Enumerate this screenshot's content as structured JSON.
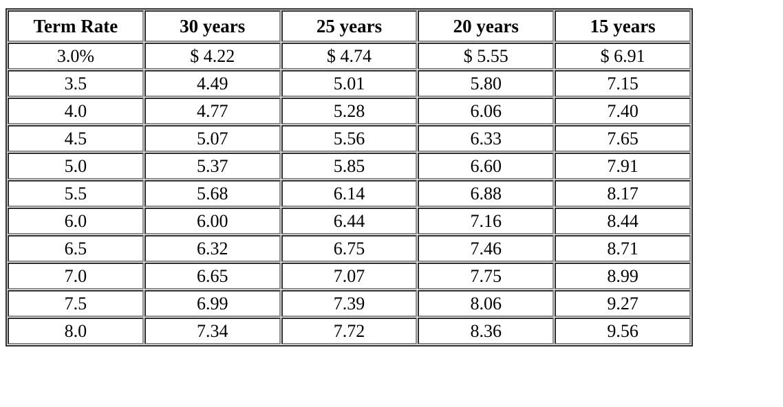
{
  "chart_data": {
    "type": "table",
    "title": "",
    "columns": [
      "Term Rate",
      "30 years",
      "25 years",
      "20 years",
      "15 years"
    ],
    "rows": [
      [
        "3.0%",
        "$ 4.22",
        "$ 4.74",
        "$ 5.55",
        "$ 6.91"
      ],
      [
        "3.5",
        "4.49",
        "5.01",
        "5.80",
        "7.15"
      ],
      [
        "4.0",
        "4.77",
        "5.28",
        "6.06",
        "7.40"
      ],
      [
        "4.5",
        "5.07",
        "5.56",
        "6.33",
        "7.65"
      ],
      [
        "5.0",
        "5.37",
        "5.85",
        "6.60",
        "7.91"
      ],
      [
        "5.5",
        "5.68",
        "6.14",
        "6.88",
        "8.17"
      ],
      [
        "6.0",
        "6.00",
        "6.44",
        "7.16",
        "8.44"
      ],
      [
        "6.5",
        "6.32",
        "6.75",
        "7.46",
        "8.71"
      ],
      [
        "7.0",
        "6.65",
        "7.07",
        "7.75",
        "8.99"
      ],
      [
        "7.5",
        "6.99",
        "7.39",
        "8.06",
        "9.27"
      ],
      [
        "8.0",
        "7.34",
        "7.72",
        "8.36",
        "9.56"
      ]
    ],
    "numeric": {
      "rates_percent": [
        3.0,
        3.5,
        4.0,
        4.5,
        5.0,
        5.5,
        6.0,
        6.5,
        7.0,
        7.5,
        8.0
      ],
      "series": [
        {
          "name": "30 years",
          "values": [
            4.22,
            4.49,
            4.77,
            5.07,
            5.37,
            5.68,
            6.0,
            6.32,
            6.65,
            6.99,
            7.34
          ]
        },
        {
          "name": "25 years",
          "values": [
            4.74,
            5.01,
            5.28,
            5.56,
            5.85,
            6.14,
            6.44,
            6.75,
            7.07,
            7.39,
            7.72
          ]
        },
        {
          "name": "20 years",
          "values": [
            5.55,
            5.8,
            6.06,
            6.33,
            6.6,
            6.88,
            7.16,
            7.46,
            7.75,
            8.06,
            8.36
          ]
        },
        {
          "name": "15 years",
          "values": [
            6.91,
            7.15,
            7.4,
            7.65,
            7.91,
            8.17,
            8.44,
            8.71,
            8.99,
            9.27,
            9.56
          ]
        }
      ]
    },
    "layout_hints": {
      "grid": "all-borders-3d",
      "border_dark_color": "#2d2d2d",
      "border_light_color": "#8a8a8a",
      "text_color": "#000000",
      "background_color": "#ffffff",
      "cell_alignment": "center"
    }
  }
}
